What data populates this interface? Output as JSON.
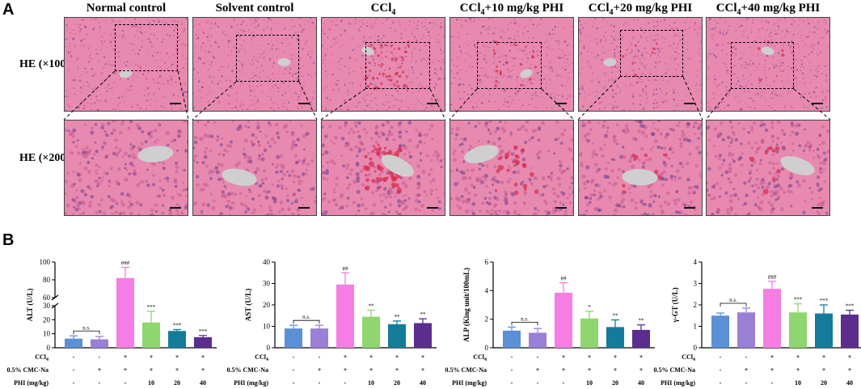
{
  "panel_a": {
    "letter": "A",
    "columns": [
      {
        "name": "Normal control",
        "base": "Normal control",
        "sub": ""
      },
      {
        "name": "Solvent control",
        "base": "Solvent control",
        "sub": ""
      },
      {
        "name": "CCl4",
        "base": "CCl",
        "sub": "4",
        "rest": ""
      },
      {
        "name": "CCl4+10 mg/kg PHI",
        "base": "CCl",
        "sub": "4",
        "rest": "+10 mg/kg PHI"
      },
      {
        "name": "CCl4+20 mg/kg PHI",
        "base": "CCl",
        "sub": "4",
        "rest": "+20 mg/kg PHI"
      },
      {
        "name": "CCl4+40 mg/kg PHI",
        "base": "CCl",
        "sub": "4",
        "rest": "+40 mg/kg PHI"
      }
    ],
    "rows": [
      "HE (×100)",
      "HE (×200)"
    ],
    "colors": {
      "tissue": "#e88ab0",
      "tissue_dark": "#c55a8f",
      "nuclei": "#6b3f8f",
      "vessel": "#cfcfcf",
      "hemorrhage": "#d92b4b"
    }
  },
  "panel_b": {
    "letter": "B",
    "row_labels": [
      "CCl4",
      "0.5% CMC-Na",
      "PHI (mg/kg)"
    ],
    "row_values": {
      "ccl4": [
        "-",
        "-",
        "+",
        "+",
        "+",
        "+"
      ],
      "cmc": [
        "-",
        "+",
        "+",
        "+",
        "+",
        "+"
      ],
      "phi": [
        "-",
        "-",
        "-",
        "10",
        "20",
        "40"
      ]
    }
  },
  "chart_data": [
    {
      "type": "bar",
      "title": "",
      "ylabel": "ALT (U/L)",
      "categories": [
        "Normal control",
        "Solvent control",
        "CCl4",
        "CCl4+10 mg/kg PHI",
        "CCl4+20 mg/kg PHI",
        "CCl4+40 mg/kg PHI"
      ],
      "values": [
        6.5,
        6.0,
        82,
        18,
        12,
        7.5
      ],
      "errors": [
        2,
        2,
        12,
        8,
        1,
        1.2
      ],
      "ylim": [
        0,
        100
      ],
      "broken_axis": {
        "lower": [
          0,
          30
        ],
        "upper": [
          60,
          100
        ]
      },
      "lower_ticks": [
        0,
        10,
        20,
        30
      ],
      "upper_ticks": [
        60,
        80,
        100
      ],
      "significance": [
        "",
        "n.s.",
        "###",
        "***",
        "***",
        "***"
      ],
      "colors": [
        "#5b8fd6",
        "#9a7fd6",
        "#f57de3",
        "#8ed66e",
        "#147c9a",
        "#5b2d8e"
      ]
    },
    {
      "type": "bar",
      "title": "",
      "ylabel": "AST (U/L)",
      "categories": [
        "Normal control",
        "Solvent control",
        "CCl4",
        "CCl4+10 mg/kg PHI",
        "CCl4+20 mg/kg PHI",
        "CCl4+40 mg/kg PHI"
      ],
      "values": [
        9,
        9,
        29.5,
        14.5,
        11,
        11.5
      ],
      "errors": [
        1.5,
        1.5,
        5.5,
        3,
        1.5,
        2
      ],
      "ylim": [
        0,
        40
      ],
      "ticks": [
        0,
        10,
        20,
        30,
        40
      ],
      "significance": [
        "",
        "n.s.",
        "##",
        "**",
        "**",
        "**"
      ],
      "colors": [
        "#5b8fd6",
        "#9a7fd6",
        "#f57de3",
        "#8ed66e",
        "#147c9a",
        "#5b2d8e"
      ]
    },
    {
      "type": "bar",
      "title": "",
      "ylabel": "ALP (King unit/100mL)",
      "categories": [
        "Normal control",
        "Solvent control",
        "CCl4",
        "CCl4+10 mg/kg PHI",
        "CCl4+20 mg/kg PHI",
        "CCl4+40 mg/kg PHI"
      ],
      "values": [
        1.2,
        1.05,
        3.85,
        2.05,
        1.45,
        1.25
      ],
      "errors": [
        0.25,
        0.3,
        0.7,
        0.5,
        0.5,
        0.35
      ],
      "ylim": [
        0,
        6
      ],
      "ticks": [
        0,
        2,
        4,
        6
      ],
      "significance": [
        "",
        "n.s.",
        "##",
        "*",
        "**",
        "**"
      ],
      "colors": [
        "#5b8fd6",
        "#9a7fd6",
        "#f57de3",
        "#8ed66e",
        "#147c9a",
        "#5b2d8e"
      ]
    },
    {
      "type": "bar",
      "title": "",
      "ylabel": "γ-GT (U/L)",
      "categories": [
        "Normal control",
        "Solvent control",
        "CCl4",
        "CCl4+10 mg/kg PHI",
        "CCl4+20 mg/kg PHI",
        "CCl4+40 mg/kg PHI"
      ],
      "values": [
        1.5,
        1.65,
        2.75,
        1.65,
        1.6,
        1.55
      ],
      "errors": [
        0.12,
        0.2,
        0.35,
        0.4,
        0.4,
        0.2
      ],
      "ylim": [
        0,
        4
      ],
      "ticks": [
        0,
        1,
        2,
        3,
        4
      ],
      "significance": [
        "",
        "n.s.",
        "###",
        "***",
        "***",
        "***"
      ],
      "colors": [
        "#5b8fd6",
        "#9a7fd6",
        "#f57de3",
        "#8ed66e",
        "#147c9a",
        "#5b2d8e"
      ]
    }
  ]
}
